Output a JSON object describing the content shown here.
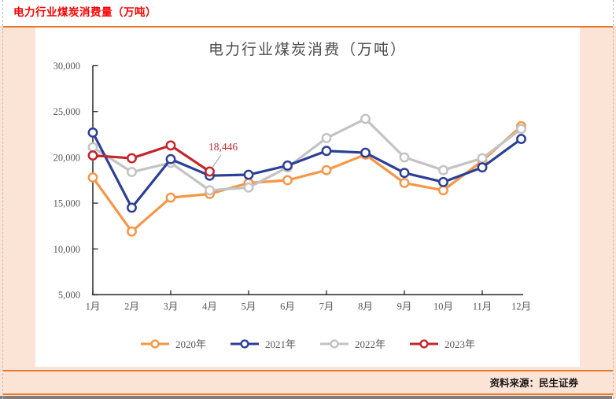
{
  "page": {
    "header_title": "电力行业煤炭消费量（万吨）",
    "footer_source": "资料来源：民生证券"
  },
  "colors": {
    "accent_rule": "#E8792C",
    "header_red": "#FE0000",
    "page_background": "#FBE3D5",
    "axis_text": "#595959"
  },
  "chart_data": {
    "type": "line",
    "title": "电力行业煤炭消费（万吨）",
    "xlabel": "",
    "ylabel": "",
    "ylim": [
      5000,
      30000
    ],
    "grid": false,
    "legend_position": "bottom",
    "categories": [
      "1月",
      "2月",
      "3月",
      "4月",
      "5月",
      "6月",
      "7月",
      "8月",
      "9月",
      "10月",
      "11月",
      "12月"
    ],
    "y_ticks": {
      "values": [
        30000,
        25000,
        20000,
        15000,
        10000,
        5000
      ],
      "labels": [
        "30,000",
        "25,000",
        "20,000",
        "15,000",
        "10,000",
        "5,000"
      ]
    },
    "series": [
      {
        "name": "2020年",
        "color": "#F79646",
        "values": [
          17800,
          11900,
          15600,
          16000,
          17200,
          17500,
          18600,
          20300,
          17200,
          16400,
          19600,
          23400
        ]
      },
      {
        "name": "2021年",
        "color": "#2B3F97",
        "values": [
          22700,
          14500,
          19800,
          18000,
          18100,
          19100,
          20700,
          20500,
          18300,
          17300,
          18900,
          22000
        ]
      },
      {
        "name": "2022年",
        "color": "#C3C3C3",
        "values": [
          21100,
          18400,
          19400,
          16400,
          16700,
          18900,
          22100,
          24200,
          20000,
          18600,
          19900,
          23100
        ]
      },
      {
        "name": "2023年",
        "color": "#C3262B",
        "values": [
          20200,
          19900,
          21300,
          18446,
          null,
          null,
          null,
          null,
          null,
          null,
          null,
          null
        ]
      }
    ],
    "annotation": {
      "text": "18,446",
      "series_index": 3,
      "month_index": 3
    }
  }
}
